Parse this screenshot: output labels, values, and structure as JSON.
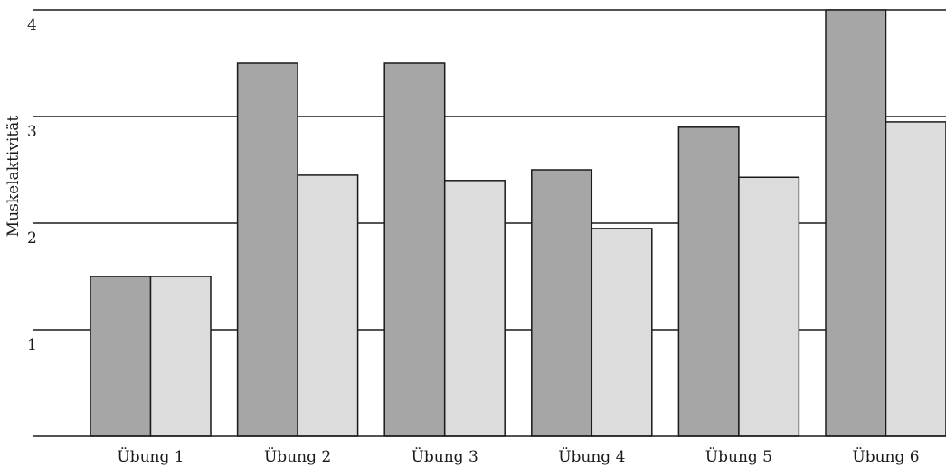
{
  "chart_data": {
    "type": "bar",
    "categories": [
      "Übung 1",
      "Übung 2",
      "Übung 3",
      "Übung 4",
      "Übung 5",
      "Übung 6"
    ],
    "series": [
      {
        "values": [
          1.5,
          3.5,
          3.5,
          2.5,
          2.9,
          4.0
        ]
      },
      {
        "values": [
          1.5,
          2.45,
          2.4,
          1.95,
          2.43,
          2.95
        ]
      }
    ],
    "ylabel": "Muskelaktivität",
    "xlabel": "",
    "ylim": [
      0,
      4
    ],
    "yticks": [
      "1",
      "2",
      "3",
      "4"
    ],
    "grid": true,
    "colors": {
      "series_dark": "#a6a6a6",
      "series_light": "#dcdcdc",
      "lines": "#1a1a1a"
    }
  }
}
